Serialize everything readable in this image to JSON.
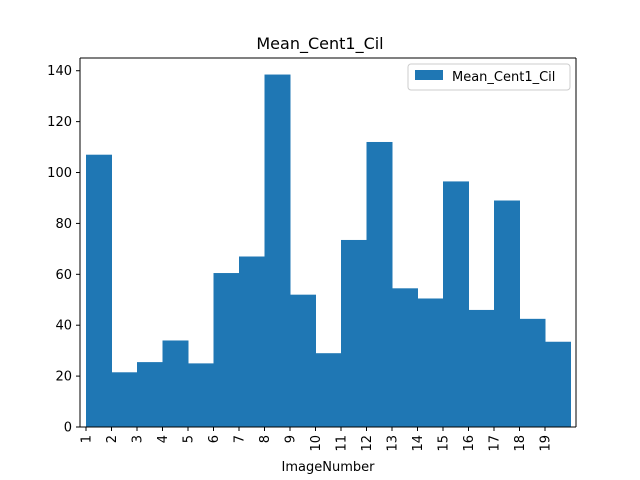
{
  "chart_data": {
    "type": "bar",
    "title": "Mean_Cent1_Cil",
    "xlabel": "ImageNumber",
    "ylabel": "",
    "categories": [
      "1",
      "2",
      "3",
      "4",
      "5",
      "6",
      "7",
      "8",
      "9",
      "10",
      "11",
      "12",
      "13",
      "14",
      "15",
      "16",
      "17",
      "18",
      "19"
    ],
    "series": [
      {
        "name": "Mean_Cent1_Cil",
        "values": [
          107,
          21.5,
          25.5,
          34,
          25,
          60.5,
          67,
          138.5,
          52,
          29,
          73.5,
          112,
          54.5,
          50.5,
          96.5,
          46,
          89,
          42.5,
          33.5
        ]
      }
    ],
    "ylim": [
      0,
      145
    ],
    "yticks": [
      0,
      20,
      40,
      60,
      80,
      100,
      120,
      140
    ],
    "grid": false,
    "legend_position": "top-right",
    "colors": {
      "bar": "#1f77b4"
    }
  }
}
